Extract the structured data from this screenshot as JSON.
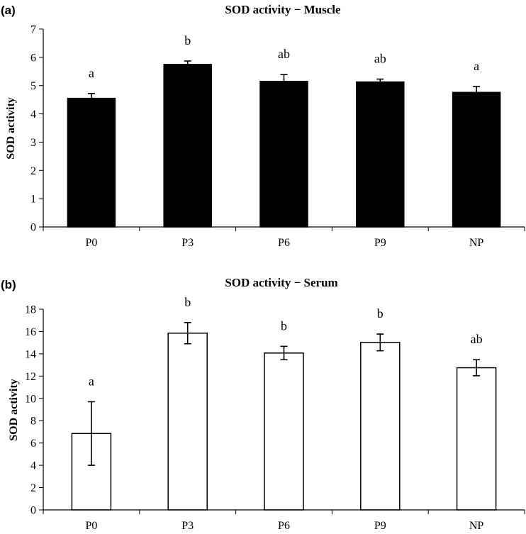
{
  "chart_data": [
    {
      "panel_label": "(a)",
      "type": "bar",
      "title": "SOD activity − Muscle",
      "ylabel": "SOD activity",
      "xlabel": "",
      "categories": [
        "P0",
        "P3",
        "P6",
        "P9",
        "NP"
      ],
      "values": [
        4.55,
        5.75,
        5.15,
        5.13,
        4.76
      ],
      "errors": [
        0.17,
        0.12,
        0.24,
        0.1,
        0.21
      ],
      "significance": [
        "a",
        "b",
        "ab",
        "ab",
        "a"
      ],
      "ylim": [
        0,
        7
      ],
      "yticks": [
        "0",
        "1",
        "2",
        "3",
        "4",
        "5",
        "6",
        "7"
      ],
      "bar_fill": "#000000",
      "grid": false
    },
    {
      "panel_label": "(b)",
      "type": "bar",
      "title": "SOD activity − Serum",
      "ylabel": "SOD activity",
      "xlabel": "",
      "categories": [
        "P0",
        "P3",
        "P6",
        "P9",
        "NP"
      ],
      "values": [
        6.85,
        15.85,
        14.07,
        15.02,
        12.75
      ],
      "errors": [
        2.85,
        0.95,
        0.6,
        0.75,
        0.72
      ],
      "significance": [
        "a",
        "b",
        "b",
        "b",
        "ab"
      ],
      "ylim": [
        0,
        18
      ],
      "yticks": [
        "0",
        "2",
        "4",
        "6",
        "8",
        "10",
        "12",
        "14",
        "16",
        "18"
      ],
      "bar_fill": "#ffffff",
      "grid": false
    }
  ]
}
